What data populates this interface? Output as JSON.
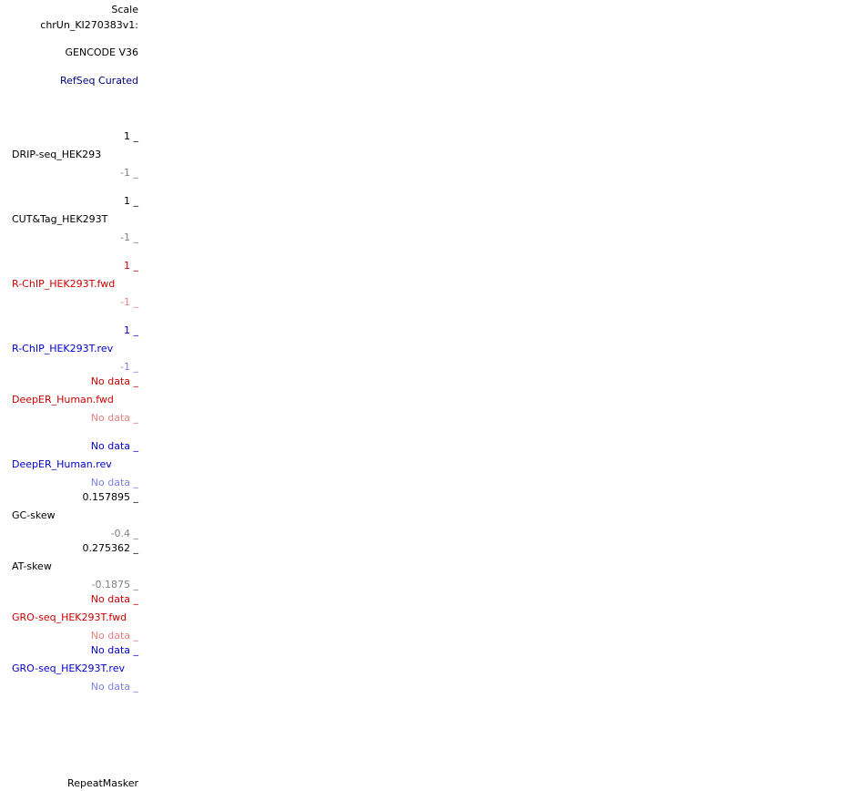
{
  "header": {
    "scale": "Scale",
    "chrom": "chrUn_KI270383v1:"
  },
  "tracks": {
    "gencode": "GENCODE V36",
    "refseq": "RefSeq Curated",
    "drip": {
      "name": "DRIP-seq_HEK293",
      "max": "1 _",
      "min": "-1 _"
    },
    "cuttag": {
      "name": "CUT&Tag_HEK293T",
      "max": "1 _",
      "min": "-1 _"
    },
    "rchip_fwd": {
      "name": "R-ChIP_HEK293T.fwd",
      "max": "1 _",
      "min": "-1 _"
    },
    "rchip_rev": {
      "name": "R-ChIP_HEK293T.rev",
      "max": "1 _",
      "min": "-1 _"
    },
    "deeper_fwd": {
      "name": "DeepER_Human.fwd",
      "max": "No data _",
      "min": "No data _"
    },
    "deeper_rev": {
      "name": "DeepER_Human.rev",
      "max": "No data _",
      "min": "No data _"
    },
    "gcskew": {
      "name": "GC-skew",
      "max": "0.157895 _",
      "min": "-0.4 _"
    },
    "atskew": {
      "name": "AT-skew",
      "max": "0.275362 _",
      "min": "-0.1875 _"
    },
    "gro_fwd": {
      "name": "GRO-seq_HEK293T.fwd",
      "max": "No data _",
      "min": "No data _"
    },
    "gro_rev": {
      "name": "GRO-seq_HEK293T.rev",
      "max": "No data _",
      "min": "No data _"
    },
    "repeatmasker": "RepeatMasker"
  },
  "colors": {
    "black": "#000000",
    "navy": "#000080",
    "red": "#cc0000",
    "pink": "#e88080",
    "blue": "#0000cc",
    "light_blue": "#8080e6",
    "grey": "#808080"
  }
}
